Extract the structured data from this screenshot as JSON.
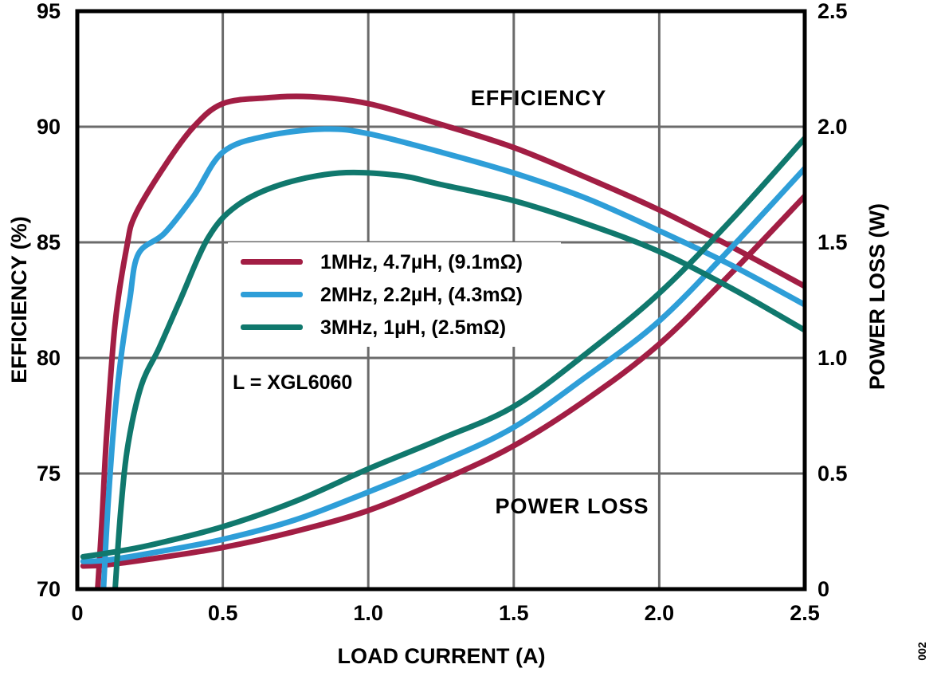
{
  "figure": {
    "efficiency_annotation": "EFFICIENCY",
    "power_loss_annotation": "POWER LOSS",
    "inductor_note": "L = XGL6060",
    "figure_number": "002"
  },
  "chart_data": {
    "type": "line",
    "title": "",
    "xlabel": "LOAD CURRENT (A)",
    "ylabel_left": "EFFICIENCY (%)",
    "ylabel_right": "POWER LOSS (W)",
    "xlim": [
      0,
      2.5
    ],
    "ylim_left": [
      70,
      95
    ],
    "ylim_right": [
      0,
      2.5
    ],
    "x_ticks": [
      "0",
      "0.5",
      "1.0",
      "1.5",
      "2.0",
      "2.5"
    ],
    "y_ticks_left": [
      "95",
      "90",
      "85",
      "80",
      "75",
      "70"
    ],
    "y_ticks_right": [
      "2.5",
      "2.0",
      "1.5",
      "1.0",
      "0.5",
      "0"
    ],
    "grid": true,
    "grid_color": "#6b6b6b",
    "legend_position": "upper-left-inside",
    "series": [
      {
        "name": "1MHz, 4.7µH, (9.1mΩ)",
        "color": "#a21e44",
        "efficiency_points": [
          [
            0.07,
            70
          ],
          [
            0.085,
            73
          ],
          [
            0.1,
            76.5
          ],
          [
            0.13,
            81.5
          ],
          [
            0.17,
            84.8
          ],
          [
            0.2,
            86.2
          ],
          [
            0.3,
            88.3
          ],
          [
            0.4,
            90.0
          ],
          [
            0.5,
            91.0
          ],
          [
            0.65,
            91.25
          ],
          [
            0.8,
            91.3
          ],
          [
            1.0,
            91.0
          ],
          [
            1.25,
            90.1
          ],
          [
            1.5,
            89.1
          ],
          [
            1.75,
            87.8
          ],
          [
            2.0,
            86.4
          ],
          [
            2.25,
            84.8
          ],
          [
            2.5,
            83.1
          ]
        ],
        "power_loss_points": [
          [
            0.02,
            0.1
          ],
          [
            0.1,
            0.105
          ],
          [
            0.25,
            0.13
          ],
          [
            0.5,
            0.18
          ],
          [
            0.75,
            0.25
          ],
          [
            1.0,
            0.34
          ],
          [
            1.25,
            0.47
          ],
          [
            1.5,
            0.62
          ],
          [
            1.75,
            0.82
          ],
          [
            2.0,
            1.06
          ],
          [
            2.25,
            1.37
          ],
          [
            2.5,
            1.7
          ]
        ]
      },
      {
        "name": "2MHz, 2.2µH, (4.3mΩ)",
        "color": "#2e9ed8",
        "efficiency_points": [
          [
            0.09,
            70
          ],
          [
            0.105,
            73.5
          ],
          [
            0.125,
            77
          ],
          [
            0.15,
            80
          ],
          [
            0.18,
            82.5
          ],
          [
            0.21,
            84.5
          ],
          [
            0.3,
            85.4
          ],
          [
            0.4,
            87.0
          ],
          [
            0.5,
            88.9
          ],
          [
            0.65,
            89.6
          ],
          [
            0.85,
            89.9
          ],
          [
            1.0,
            89.7
          ],
          [
            1.25,
            88.9
          ],
          [
            1.5,
            88.0
          ],
          [
            1.75,
            86.9
          ],
          [
            2.0,
            85.5
          ],
          [
            2.25,
            84.0
          ],
          [
            2.5,
            82.3
          ]
        ],
        "power_loss_points": [
          [
            0.02,
            0.12
          ],
          [
            0.1,
            0.125
          ],
          [
            0.25,
            0.155
          ],
          [
            0.5,
            0.215
          ],
          [
            0.75,
            0.3
          ],
          [
            1.0,
            0.42
          ],
          [
            1.25,
            0.55
          ],
          [
            1.5,
            0.7
          ],
          [
            1.75,
            0.92
          ],
          [
            2.0,
            1.16
          ],
          [
            2.25,
            1.48
          ],
          [
            2.5,
            1.82
          ]
        ]
      },
      {
        "name": "3MHz, 1µH, (2.5mΩ)",
        "color": "#10786d",
        "efficiency_points": [
          [
            0.13,
            70
          ],
          [
            0.15,
            73.5
          ],
          [
            0.175,
            76.3
          ],
          [
            0.22,
            78.8
          ],
          [
            0.28,
            80.4
          ],
          [
            0.35,
            82.4
          ],
          [
            0.45,
            85.2
          ],
          [
            0.55,
            86.6
          ],
          [
            0.7,
            87.5
          ],
          [
            0.9,
            88.0
          ],
          [
            1.1,
            87.9
          ],
          [
            1.25,
            87.5
          ],
          [
            1.5,
            86.8
          ],
          [
            1.75,
            85.8
          ],
          [
            2.0,
            84.6
          ],
          [
            2.25,
            83.0
          ],
          [
            2.5,
            81.2
          ]
        ],
        "power_loss_points": [
          [
            0.02,
            0.14
          ],
          [
            0.1,
            0.155
          ],
          [
            0.25,
            0.19
          ],
          [
            0.5,
            0.27
          ],
          [
            0.75,
            0.38
          ],
          [
            1.0,
            0.52
          ],
          [
            1.25,
            0.65
          ],
          [
            1.5,
            0.79
          ],
          [
            1.75,
            1.02
          ],
          [
            2.0,
            1.28
          ],
          [
            2.25,
            1.6
          ],
          [
            2.5,
            1.95
          ]
        ]
      }
    ]
  }
}
